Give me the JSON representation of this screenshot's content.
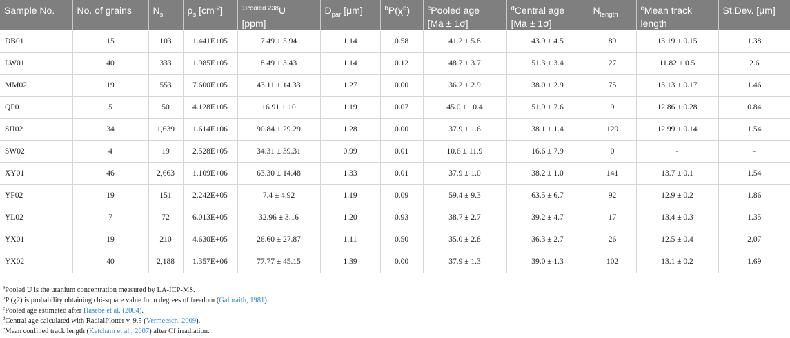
{
  "columns": [
    {
      "pre_sup": "",
      "text": "Sample No.",
      "sub": "",
      "post_sup": "",
      "text2": "",
      "line2": ""
    },
    {
      "pre_sup": "",
      "text": "No. of grains",
      "sub": "",
      "post_sup": "",
      "text2": "",
      "line2": ""
    },
    {
      "pre_sup": "",
      "text": "N",
      "sub": "s",
      "post_sup": "",
      "text2": "",
      "line2": ""
    },
    {
      "pre_sup": "",
      "text": "ρ",
      "sub": "s",
      "post_sup": "",
      "text2": " [cm",
      "sup2": "-2",
      "text3": "]",
      "line2": ""
    },
    {
      "pre_sup": "1Pooled 238",
      "text": "U",
      "sub": "",
      "post_sup": "",
      "text2": "",
      "line2": "[ppm]"
    },
    {
      "pre_sup": "",
      "text": "D",
      "sub": "par",
      "post_sup": "",
      "text2": " [μm]",
      "line2": ""
    },
    {
      "pre_sup": "b",
      "text": "P(χ",
      "sub": "",
      "post_sup": "b",
      "text2": ")",
      "line2": ""
    },
    {
      "pre_sup": "c",
      "text": "Pooled age",
      "sub": "",
      "post_sup": "",
      "text2": "",
      "line2": "[Ma ± 1σ]"
    },
    {
      "pre_sup": "d",
      "text": "Central age",
      "sub": "",
      "post_sup": "",
      "text2": "",
      "line2": "[Ma ± 1σ]"
    },
    {
      "pre_sup": "",
      "text": "N",
      "sub": "length",
      "post_sup": "",
      "text2": "",
      "line2": ""
    },
    {
      "pre_sup": "e",
      "text": "Mean track",
      "sub": "",
      "post_sup": "",
      "text2": "",
      "line2": "length"
    },
    {
      "pre_sup": "",
      "text": "St.Dev. [μm]",
      "sub": "",
      "post_sup": "",
      "text2": "",
      "line2": ""
    }
  ],
  "rows": [
    [
      "DB01",
      "15",
      "103",
      "1.441E+05",
      "7.49 ± 5.94",
      "1.14",
      "0.58",
      "41.2 ± 5.8",
      "43.9 ± 4.5",
      "89",
      "13.19 ± 0.15",
      "1.38"
    ],
    [
      "LW01",
      "40",
      "333",
      "1.985E+05",
      "8.49 ± 3.43",
      "1.14",
      "0.12",
      "48.7 ± 3.7",
      "51.3 ± 3.4",
      "27",
      "11.82 ± 0.5",
      "2.6"
    ],
    [
      "MM02",
      "19",
      "553",
      "7.600E+05",
      "43.11 ± 14.33",
      "1.27",
      "0.00",
      "36.2 ± 2.9",
      "38.0 ± 2.9",
      "75",
      "13.13 ± 0.17",
      "1.46"
    ],
    [
      "QP01",
      "5",
      "50",
      "4.128E+05",
      "16.91 ± 10",
      "1.19",
      "0.07",
      "45.0 ± 10.4",
      "51.9 ± 7.6",
      "9",
      "12.86 ± 0.28",
      "0.84"
    ],
    [
      "SH02",
      "34",
      "1,639",
      "1.614E+06",
      "90.84 ± 29.29",
      "1.28",
      "0.00",
      "37.9 ± 1.6",
      "38.1 ± 1.4",
      "129",
      "12.99 ± 0.14",
      "1.54"
    ],
    [
      "SW02",
      "4",
      "19",
      "2.528E+05",
      "34.31 ± 39.31",
      "0.99",
      "0.01",
      "10.6 ± 11.9",
      "16.6 ± 7.9",
      "0",
      "-",
      "-"
    ],
    [
      "XY01",
      "46",
      "2,663",
      "1.109E+06",
      "63.30 ± 14.48",
      "1.33",
      "0.01",
      "37.9 ± 1.0",
      "38.2 ± 1.0",
      "141",
      "13.7 ± 0.1",
      "1.54"
    ],
    [
      "YF02",
      "19",
      "151",
      "2.242E+05",
      "7.4 ± 4.92",
      "1.19",
      "0.09",
      "59.4 ± 9.3",
      "63.5 ± 6.7",
      "92",
      "12.9 ± 0.2",
      "1.86"
    ],
    [
      "YL02",
      "7",
      "72",
      "6.013E+05",
      "32.96 ± 3.16",
      "1.20",
      "0.93",
      "38.7 ± 2.7",
      "39.2 ± 4.7",
      "17",
      "13.4 ± 0.3",
      "1.35"
    ],
    [
      "YX01",
      "19",
      "210",
      "4.630E+05",
      "26.60 ± 27.87",
      "1.11",
      "0.50",
      "35.0 ± 2.8",
      "36.3 ± 2.7",
      "26",
      "12.5 ± 0.4",
      "2.07"
    ],
    [
      "YX02",
      "40",
      "2,188",
      "1.357E+06",
      "77.77 ± 45.15",
      "1.39",
      "0.00",
      "37.9 ± 1.3",
      "39.0 ± 1.3",
      "102",
      "13.1 ± 0.2",
      "1.69"
    ]
  ],
  "footnotes": [
    {
      "sup": "a",
      "before": "Pooled U is the uranium concentration measured by LA-ICP-MS.",
      "ref": "",
      "after": ""
    },
    {
      "sup": "b",
      "before": "P (χ2) is probability obtaining chi-square value for n degrees of freedom (",
      "ref": "Galbraith, 1981",
      "after": ")."
    },
    {
      "sup": "c",
      "before": "Pooled age estimated after ",
      "ref": "Hasebe et al. (2004)",
      "after": "."
    },
    {
      "sup": "d",
      "before": "Central age calculated with RadialPlotter v. 9.5 (",
      "ref": "Vermeesch, 2009",
      "after": ")."
    },
    {
      "sup": "e",
      "before": "Mean confined track length (",
      "ref": "Ketcham et al., 2007",
      "after": ") after Cf irradiation."
    }
  ]
}
